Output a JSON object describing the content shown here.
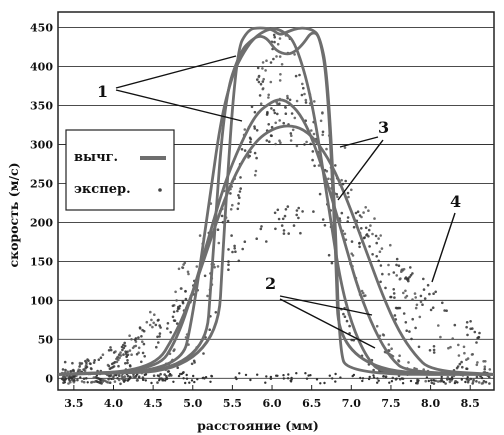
{
  "chart_data": {
    "type": "line",
    "title": "",
    "xlabel": "расстояние (мм)",
    "ylabel": "скорость (м/с)",
    "xlim": [
      3.3,
      8.8
    ],
    "ylim": [
      -15,
      470
    ],
    "xticks": [
      "3.5",
      "4.0",
      "4.5",
      "5.0",
      "5.5",
      "6.0",
      "6.5",
      "7.0",
      "7.5",
      "8.0",
      "8.5"
    ],
    "yticks": [
      "0",
      "50",
      "100",
      "150",
      "200",
      "250",
      "300",
      "350",
      "400",
      "450"
    ],
    "grid": "horizontal",
    "legend": {
      "placement": "left",
      "entries": [
        {
          "label": "вычг.",
          "marker": "line"
        },
        {
          "label": "экспер.",
          "marker": "dots"
        }
      ]
    },
    "annotations": [
      "1",
      "2",
      "3",
      "4"
    ],
    "series": [
      {
        "x": [
          5.15,
          5.25,
          5.4,
          5.6,
          5.75,
          5.85,
          5.95,
          6.05,
          6.2,
          6.3,
          6.4,
          6.5,
          6.6,
          6.7,
          6.8,
          6.85
        ],
        "y": [
          10,
          150,
          360,
          420,
          435,
          440,
          435,
          420,
          415,
          420,
          430,
          445,
          440,
          380,
          170,
          10
        ]
      },
      {
        "x": [
          5.3,
          5.4,
          5.55,
          5.7,
          5.85,
          6.0,
          6.1,
          6.2,
          6.35,
          6.5,
          6.6,
          6.7,
          6.8,
          6.85,
          6.95
        ],
        "y": [
          10,
          200,
          420,
          448,
          450,
          448,
          440,
          445,
          450,
          448,
          440,
          390,
          200,
          40,
          5
        ]
      },
      {
        "x": [
          4.85,
          5.0,
          5.2,
          5.35,
          5.5,
          5.65,
          5.8,
          6.0,
          6.15,
          6.3,
          6.5,
          6.7,
          6.85,
          7.0,
          7.2,
          7.4
        ],
        "y": [
          10,
          80,
          220,
          330,
          390,
          420,
          440,
          450,
          445,
          430,
          360,
          230,
          130,
          70,
          25,
          5
        ]
      },
      {
        "x": [
          4.55,
          4.8,
          5.0,
          5.2,
          5.4,
          5.6,
          5.8,
          6.0,
          6.1,
          6.2,
          6.35,
          6.5,
          6.7,
          6.9,
          7.1,
          7.3,
          7.5,
          7.7
        ],
        "y": [
          10,
          50,
          110,
          180,
          250,
          300,
          340,
          355,
          358,
          355,
          340,
          310,
          250,
          180,
          110,
          60,
          25,
          8
        ]
      },
      {
        "x": [
          4.5,
          4.8,
          5.0,
          5.2,
          5.4,
          5.6,
          5.8,
          6.0,
          6.2,
          6.4,
          6.6,
          6.8,
          7.0,
          7.2,
          7.4,
          7.6,
          7.8,
          8.0
        ],
        "y": [
          10,
          60,
          110,
          170,
          230,
          275,
          305,
          320,
          325,
          320,
          300,
          265,
          215,
          160,
          105,
          60,
          30,
          10
        ]
      }
    ],
    "scatter": [
      {
        "center": 6.1,
        "width": 0.45,
        "peak": 445,
        "spread": 28
      },
      {
        "center": 6.15,
        "width": 0.6,
        "peak": 415,
        "spread": 30
      },
      {
        "center": 6.2,
        "width": 0.85,
        "peak": 340,
        "spread": 30
      },
      {
        "center": 6.25,
        "width": 1.0,
        "peak": 330,
        "spread": 35
      },
      {
        "center": 6.5,
        "width": 1.3,
        "peak": 205,
        "spread": 22
      }
    ]
  }
}
